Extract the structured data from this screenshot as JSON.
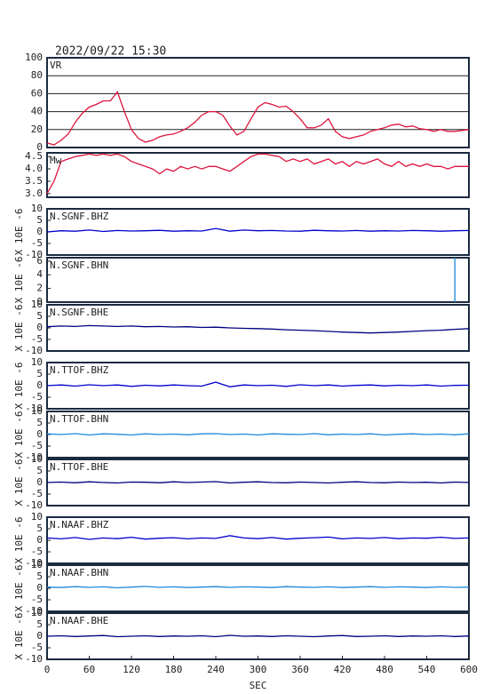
{
  "chart_data": [
    {
      "type": "line",
      "title": "2022/09/22 15:30",
      "x": [
        0,
        10,
        20,
        30,
        40,
        50,
        60,
        70,
        80,
        90,
        100,
        110,
        120,
        130,
        140,
        150,
        160,
        170,
        180,
        190,
        200,
        210,
        220,
        230,
        240,
        250,
        260,
        270,
        280,
        290,
        300,
        310,
        320,
        330,
        340,
        350,
        360,
        370,
        380,
        390,
        400,
        410,
        420,
        430,
        440,
        450,
        460,
        470,
        480,
        490,
        500,
        510,
        520,
        530,
        540,
        550,
        560,
        570,
        580,
        590,
        600
      ],
      "series": [
        {
          "name": "VR",
          "color": "#dc143c",
          "values": [
            5,
            3,
            8,
            15,
            28,
            38,
            45,
            48,
            52,
            52,
            62,
            40,
            20,
            10,
            6,
            8,
            12,
            14,
            15,
            18,
            22,
            28,
            36,
            40,
            40,
            36,
            24,
            14,
            18,
            32,
            45,
            50,
            48,
            45,
            46,
            40,
            32,
            22,
            22,
            25,
            32,
            18,
            12,
            10,
            12,
            14,
            18,
            20,
            22,
            25,
            26,
            23,
            24,
            21,
            20,
            18,
            20,
            18,
            18,
            19,
            20
          ]
        }
      ],
      "xlim": [
        0,
        600
      ],
      "ylim": [
        0,
        100
      ],
      "yticks": [
        0,
        20,
        40,
        60,
        80,
        100
      ],
      "grid": true
    },
    {
      "type": "line",
      "x": [
        0,
        10,
        20,
        30,
        40,
        50,
        60,
        70,
        80,
        90,
        100,
        110,
        120,
        130,
        140,
        150,
        160,
        170,
        180,
        190,
        200,
        210,
        220,
        230,
        240,
        250,
        260,
        270,
        280,
        290,
        300,
        310,
        320,
        330,
        340,
        350,
        360,
        370,
        380,
        390,
        400,
        410,
        420,
        430,
        440,
        450,
        460,
        470,
        480,
        490,
        500,
        510,
        520,
        530,
        540,
        550,
        560,
        570,
        580,
        590,
        600
      ],
      "series": [
        {
          "name": "Mw",
          "color": "#dc143c",
          "values": [
            3.0,
            3.5,
            4.3,
            4.4,
            4.5,
            4.55,
            4.6,
            4.55,
            4.6,
            4.55,
            4.6,
            4.5,
            4.3,
            4.2,
            4.1,
            4.0,
            3.8,
            4.0,
            3.9,
            4.1,
            4.0,
            4.1,
            4.0,
            4.1,
            4.1,
            4.0,
            3.9,
            4.1,
            4.3,
            4.5,
            4.6,
            4.6,
            4.55,
            4.5,
            4.3,
            4.4,
            4.3,
            4.4,
            4.2,
            4.3,
            4.4,
            4.2,
            4.3,
            4.1,
            4.3,
            4.2,
            4.3,
            4.4,
            4.2,
            4.1,
            4.3,
            4.1,
            4.2,
            4.1,
            4.2,
            4.1,
            4.1,
            4.0,
            4.1,
            4.1,
            4.1
          ]
        }
      ],
      "xlim": [
        0,
        600
      ],
      "ylim": [
        2.85,
        4.65
      ],
      "yticks": [
        {
          "value": 3,
          "label": "3.0"
        },
        3.5,
        {
          "value": 4,
          "label": "4.0"
        },
        4.5
      ],
      "grid": false
    },
    {
      "type": "line",
      "ylabel": "X 10E -6",
      "x": [
        0,
        20,
        40,
        60,
        80,
        100,
        120,
        140,
        160,
        180,
        200,
        220,
        240,
        260,
        280,
        300,
        320,
        340,
        360,
        380,
        400,
        420,
        440,
        460,
        480,
        500,
        520,
        540,
        560,
        580,
        600
      ],
      "series": [
        {
          "name": "N.SGNF.BHZ",
          "color": "#0000cd",
          "values": [
            0,
            0.5,
            0.3,
            0.8,
            0.2,
            0.6,
            0.4,
            0.5,
            0.7,
            0.3,
            0.5,
            0.4,
            1.5,
            0.3,
            0.8,
            0.5,
            0.6,
            0.4,
            0.3,
            0.7,
            0.5,
            0.4,
            0.6,
            0.3,
            0.5,
            0.4,
            0.6,
            0.5,
            0.3,
            0.5,
            0.6
          ]
        }
      ],
      "xlim": [
        0,
        600
      ],
      "ylim": [
        -10,
        10
      ],
      "yticks": [
        -10,
        -5,
        0,
        5,
        10
      ],
      "grid": false
    },
    {
      "type": "line",
      "ylabel": "X 10E -6",
      "x": [
        580,
        580
      ],
      "series": [
        {
          "name": "N.SGNF.BHN",
          "color": "#1e88d8",
          "values": [
            0,
            6.5
          ]
        }
      ],
      "xlim": [
        0,
        600
      ],
      "ylim": [
        0,
        6.5
      ],
      "yticks": [
        0,
        2,
        4,
        6
      ],
      "grid": false
    },
    {
      "type": "line",
      "ylabel": "X 10E -6",
      "x": [
        0,
        20,
        40,
        60,
        80,
        100,
        120,
        140,
        160,
        180,
        200,
        220,
        240,
        260,
        280,
        300,
        320,
        340,
        360,
        380,
        400,
        420,
        440,
        460,
        480,
        500,
        520,
        540,
        560,
        580,
        600
      ],
      "series": [
        {
          "name": "N.SGNF.BHE",
          "color": "#000080",
          "values": [
            0.5,
            0.8,
            0.6,
            1,
            0.8,
            0.6,
            0.8,
            0.5,
            0.6,
            0.4,
            0.5,
            0.2,
            0.3,
            0,
            -0.2,
            -0.3,
            -0.5,
            -0.8,
            -1,
            -1.2,
            -1.5,
            -1.8,
            -2,
            -2.2,
            -2,
            -1.8,
            -1.5,
            -1.2,
            -1,
            -0.6,
            -0.3
          ]
        }
      ],
      "xlim": [
        0,
        600
      ],
      "ylim": [
        -10,
        10
      ],
      "yticks": [
        -10,
        -5,
        0,
        5,
        10
      ],
      "grid": false
    },
    {
      "type": "line",
      "ylabel": "X 10E -6",
      "x": [
        0,
        20,
        40,
        60,
        80,
        100,
        120,
        140,
        160,
        180,
        200,
        220,
        240,
        260,
        280,
        300,
        320,
        340,
        360,
        380,
        400,
        420,
        440,
        460,
        480,
        500,
        520,
        540,
        560,
        580,
        600
      ],
      "series": [
        {
          "name": "N.TTOF.BHZ",
          "color": "#0000cd",
          "values": [
            0,
            0.3,
            -0.2,
            0.4,
            0,
            0.3,
            -0.3,
            0.2,
            -0.1,
            0.3,
            0,
            -0.2,
            1.5,
            -0.5,
            0.3,
            0,
            0.2,
            -0.3,
            0.4,
            0,
            0.3,
            -0.2,
            0.1,
            0.3,
            -0.1,
            0.2,
            0,
            0.3,
            -0.2,
            0.1,
            0.2
          ]
        }
      ],
      "xlim": [
        0,
        600
      ],
      "ylim": [
        -10,
        10
      ],
      "yticks": [
        -10,
        -5,
        0,
        5,
        10
      ],
      "grid": false
    },
    {
      "type": "line",
      "ylabel": "X 10E -6",
      "x": [
        0,
        20,
        40,
        60,
        80,
        100,
        120,
        140,
        160,
        180,
        200,
        220,
        240,
        260,
        280,
        300,
        320,
        340,
        360,
        380,
        400,
        420,
        440,
        460,
        480,
        500,
        520,
        540,
        560,
        580,
        600
      ],
      "series": [
        {
          "name": "N.TTOF.BHN",
          "color": "#1e88d8",
          "values": [
            0.3,
            0,
            0.4,
            -0.2,
            0.3,
            0.1,
            -0.2,
            0.3,
            0,
            0.2,
            -0.1,
            0.3,
            0.4,
            0,
            0.2,
            -0.2,
            0.3,
            0.1,
            0,
            0.4,
            -0.1,
            0.2,
            0,
            0.3,
            -0.2,
            0.1,
            0.3,
            0,
            0.2,
            -0.1,
            0.3
          ]
        }
      ],
      "xlim": [
        0,
        600
      ],
      "ylim": [
        -10,
        10
      ],
      "yticks": [
        -10,
        -5,
        0,
        5,
        10
      ],
      "grid": false
    },
    {
      "type": "line",
      "ylabel": "X 10E -6",
      "x": [
        0,
        20,
        40,
        60,
        80,
        100,
        120,
        140,
        160,
        180,
        200,
        220,
        240,
        260,
        280,
        300,
        320,
        340,
        360,
        380,
        400,
        420,
        440,
        460,
        480,
        500,
        520,
        540,
        560,
        580,
        600
      ],
      "series": [
        {
          "name": "N.TTOF.BHE",
          "color": "#000080",
          "values": [
            0,
            0.2,
            -0.1,
            0.3,
            0,
            -0.2,
            0.2,
            0.1,
            -0.1,
            0.3,
            0,
            0.2,
            0.4,
            -0.2,
            0.1,
            0.3,
            0,
            -0.1,
            0.2,
            0,
            -0.2,
            0.1,
            0.3,
            0,
            -0.1,
            0.2,
            0,
            0.1,
            -0.2,
            0.2,
            0
          ]
        }
      ],
      "xlim": [
        0,
        600
      ],
      "ylim": [
        -10,
        10
      ],
      "yticks": [
        -10,
        -5,
        0,
        5,
        10
      ],
      "grid": false
    },
    {
      "type": "line",
      "ylabel": "X 10E -6",
      "x": [
        0,
        20,
        40,
        60,
        80,
        100,
        120,
        140,
        160,
        180,
        200,
        220,
        240,
        260,
        280,
        300,
        320,
        340,
        360,
        380,
        400,
        420,
        440,
        460,
        480,
        500,
        520,
        540,
        560,
        580,
        600
      ],
      "series": [
        {
          "name": "N.NAAF.BHZ",
          "color": "#0000cd",
          "values": [
            1,
            0.6,
            1.2,
            0.4,
            1,
            0.7,
            1.3,
            0.5,
            0.9,
            1.1,
            0.6,
            1,
            0.8,
            2,
            1,
            0.7,
            1.2,
            0.5,
            0.9,
            1.1,
            1.4,
            0.6,
            1,
            0.8,
            1.2,
            0.7,
            1,
            0.9,
            1.3,
            0.8,
            1
          ]
        }
      ],
      "xlim": [
        0,
        600
      ],
      "ylim": [
        -10,
        10
      ],
      "yticks": [
        -10,
        -5,
        0,
        5,
        10
      ],
      "grid": false
    },
    {
      "type": "line",
      "ylabel": "X 10E -6",
      "x": [
        0,
        20,
        40,
        60,
        80,
        100,
        120,
        140,
        160,
        180,
        200,
        220,
        240,
        260,
        280,
        300,
        320,
        340,
        360,
        380,
        400,
        420,
        440,
        460,
        480,
        500,
        520,
        540,
        560,
        580,
        600
      ],
      "series": [
        {
          "name": "N.NAAF.BHN",
          "color": "#1e88d8",
          "values": [
            0.5,
            0.3,
            0.7,
            0.4,
            0.6,
            0.2,
            0.5,
            0.8,
            0.4,
            0.6,
            0.3,
            0.5,
            0.7,
            0.4,
            0.6,
            0.5,
            0.3,
            0.7,
            0.5,
            0.4,
            0.6,
            0.3,
            0.5,
            0.7,
            0.4,
            0.6,
            0.5,
            0.3,
            0.6,
            0.4,
            0.5
          ]
        }
      ],
      "xlim": [
        0,
        600
      ],
      "ylim": [
        -10,
        10
      ],
      "yticks": [
        -10,
        -5,
        0,
        5,
        10
      ],
      "grid": false
    },
    {
      "type": "line",
      "ylabel": "X 10E -6",
      "xlabel": "SEC",
      "x": [
        0,
        20,
        40,
        60,
        80,
        100,
        120,
        140,
        160,
        180,
        200,
        220,
        240,
        260,
        280,
        300,
        320,
        340,
        360,
        380,
        400,
        420,
        440,
        460,
        480,
        500,
        520,
        540,
        560,
        580,
        600
      ],
      "series": [
        {
          "name": "N.NAAF.BHE",
          "color": "#000080",
          "values": [
            0,
            0.2,
            -0.1,
            0.1,
            0.3,
            -0.2,
            0,
            0.2,
            -0.1,
            0.1,
            0,
            0.2,
            -0.2,
            0.4,
            0,
            0.1,
            -0.1,
            0.2,
            0,
            -0.2,
            0.1,
            0.3,
            -0.1,
            0,
            0.2,
            -0.1,
            0.1,
            0,
            0.2,
            -0.1,
            0.1
          ]
        }
      ],
      "xlim": [
        0,
        600
      ],
      "ylim": [
        -10,
        10
      ],
      "yticks": [
        -10,
        -5,
        0,
        5,
        10
      ],
      "xticks": [
        0,
        60,
        120,
        180,
        240,
        300,
        360,
        420,
        480,
        540,
        600
      ],
      "grid": false
    }
  ]
}
